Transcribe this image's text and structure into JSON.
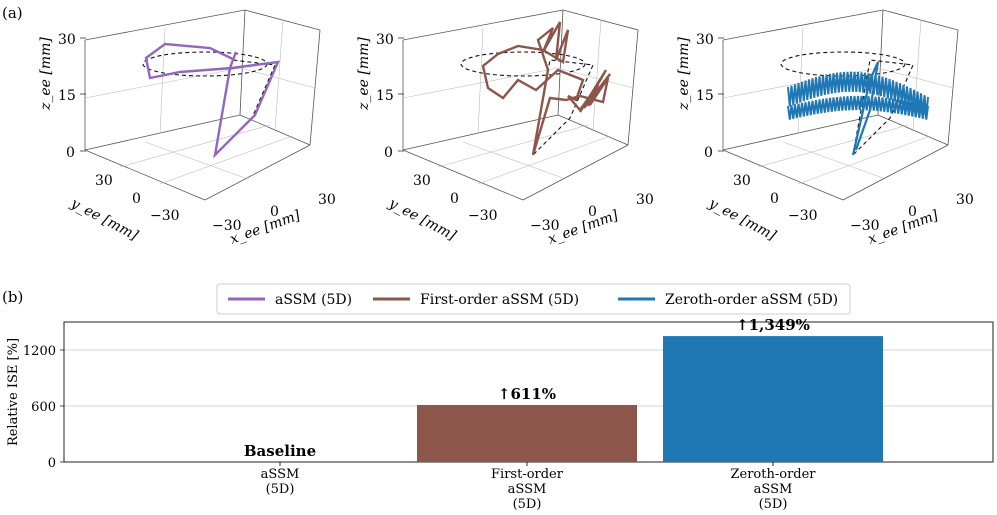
{
  "panel_labels": {
    "a": "(a)",
    "b": "(b)"
  },
  "legend": [
    {
      "name": "aSSM (5D)",
      "color": "#9467bd"
    },
    {
      "name": "First-order aSSM (5D)",
      "color": "#8c564b"
    },
    {
      "name": "Zeroth-order aSSM (5D)",
      "color": "#1f77b4"
    }
  ],
  "chart_data": [
    {
      "type": "line3d",
      "title": "aSSM (5D)",
      "xlabel": "x_ee [mm]",
      "ylabel": "y_ee [mm]",
      "zlabel": "z_ee [mm]",
      "x_ticks": [
        "−30",
        "0",
        "30"
      ],
      "y_ticks": [
        "30",
        "0",
        "−30"
      ],
      "z_ticks": [
        "0",
        "15",
        "30"
      ],
      "color": "#9467bd",
      "reference": "dashed black: circle at z=25 mm and figure-eight path"
    },
    {
      "type": "line3d",
      "title": "First-order aSSM (5D)",
      "xlabel": "x_ee [mm]",
      "ylabel": "y_ee [mm]",
      "zlabel": "z_ee [mm]",
      "x_ticks": [
        "−30",
        "0",
        "30"
      ],
      "y_ticks": [
        "30",
        "0",
        "−30"
      ],
      "z_ticks": [
        "0",
        "15",
        "30"
      ],
      "color": "#8c564b"
    },
    {
      "type": "line3d",
      "title": "Zeroth-order aSSM (5D)",
      "xlabel": "x_ee [mm]",
      "ylabel": "y_ee [mm]",
      "zlabel": "z_ee [mm]",
      "x_ticks": [
        "−30",
        "0",
        "30"
      ],
      "y_ticks": [
        "30",
        "0",
        "−30"
      ],
      "z_ticks": [
        "0",
        "15",
        "30"
      ],
      "color": "#1f77b4"
    },
    {
      "type": "bar",
      "ylabel": "Relative ISE [%]",
      "ylim": [
        0,
        1500
      ],
      "yticks": [
        0,
        600,
        1200
      ],
      "grid": true,
      "categories": [
        [
          "aSSM",
          "(5D)"
        ],
        [
          "First-order",
          "aSSM",
          "(5D)"
        ],
        [
          "Zeroth-order",
          "aSSM",
          "(5D)"
        ]
      ],
      "values": [
        0,
        611,
        1349
      ],
      "colors": [
        "#9467bd",
        "#8c564b",
        "#1f77b4"
      ],
      "bar_labels": [
        "Baseline",
        "↑611%",
        "↑1,349%"
      ]
    }
  ]
}
